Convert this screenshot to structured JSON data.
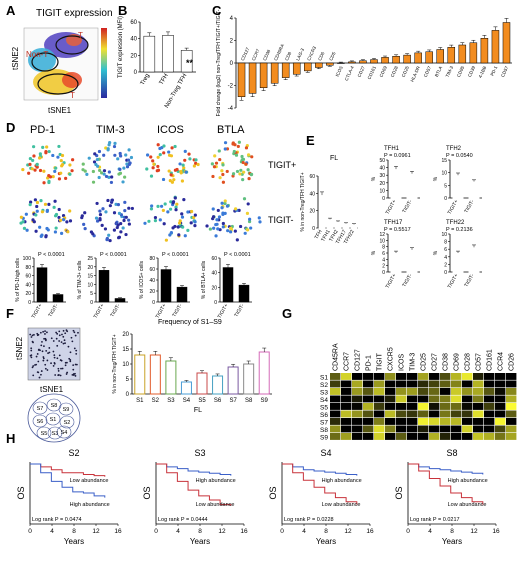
{
  "panel_letters": [
    "A",
    "B",
    "C",
    "D",
    "E",
    "F",
    "G",
    "H"
  ],
  "A": {
    "title": "TIGIT expression",
    "xlabel": "tSNE1",
    "ylabel": "tSNE2",
    "regions": [
      "T",
      "Non-T",
      "T"
    ]
  },
  "chart_data": [
    {
      "id": "B",
      "type": "bar",
      "categories": [
        "Treg",
        "TFH",
        "Non-Treg TFH"
      ],
      "values": [
        43,
        44,
        26
      ],
      "ylabel": "TIGIT expression (MFI)",
      "ylim": [
        0,
        60
      ],
      "ticks": [
        0,
        20,
        40,
        60
      ],
      "annotation": "**"
    },
    {
      "id": "C",
      "type": "bar",
      "ylabel": "Fold change (log2) non-Treg/TFH TIGIT+/TIGIT-",
      "ylim": [
        -4,
        4
      ],
      "ticks": [
        -4,
        -2,
        0,
        2,
        4
      ],
      "categories": [
        "CD127",
        "CCR7",
        "CD38",
        "CD45RA",
        "CD8",
        "LAG-3",
        "CXCR3",
        "CD6",
        "CD5",
        "ICOS",
        "CTLA-4",
        "CD27",
        "CD161",
        "CD69",
        "CD28",
        "CD25",
        "HLA-DR",
        "CD57",
        "BTLA",
        "TIM-3",
        "CD95",
        "CD39",
        "4-1BB",
        "PD-1",
        "CD57"
      ],
      "values": [
        -3.0,
        -2.7,
        -2.2,
        -1.8,
        -1.3,
        -1.0,
        -0.7,
        -0.4,
        -0.2,
        0.0,
        0.1,
        0.2,
        0.3,
        0.5,
        0.6,
        0.7,
        0.9,
        1.0,
        1.2,
        1.4,
        1.6,
        1.8,
        2.2,
        2.9,
        3.6
      ]
    },
    {
      "id": "D-PD1",
      "type": "bar",
      "categories": [
        "TIGIT+",
        "TIGIT-"
      ],
      "values": [
        78,
        17
      ],
      "ylabel": "% of PD-1high cells",
      "ylim": [
        0,
        100
      ],
      "ticks": [
        0,
        20,
        40,
        60,
        80,
        100
      ],
      "annotation": "P < 0.0001"
    },
    {
      "id": "D-TIM3",
      "type": "bar",
      "categories": [
        "TIGIT+",
        "TIGIT-"
      ],
      "values": [
        18,
        2
      ],
      "ylabel": "% of TIM-3+ cells",
      "ylim": [
        0,
        25
      ],
      "ticks": [
        0,
        5,
        10,
        15,
        20,
        25
      ],
      "annotation": "P < 0.0001"
    },
    {
      "id": "D-ICOS",
      "type": "bar",
      "categories": [
        "TIGIT+",
        "TIGIT-"
      ],
      "values": [
        59,
        27
      ],
      "ylabel": "% of ICOS+ cells",
      "ylim": [
        0,
        80
      ],
      "ticks": [
        0,
        20,
        40,
        60,
        80
      ],
      "annotation": "P < 0.0001"
    },
    {
      "id": "D-BTLA",
      "type": "bar",
      "categories": [
        "TIGIT+",
        "TIGIT-"
      ],
      "values": [
        47,
        23
      ],
      "ylabel": "% of BTLA+ cells",
      "ylim": [
        0,
        60
      ],
      "ticks": [
        0,
        20,
        40,
        60
      ],
      "annotation": "P < 0.0001"
    },
    {
      "id": "E-FL",
      "type": "bar",
      "title": "FL",
      "categories": [
        "TFH",
        "TFH1",
        "TFH2",
        "TFH17",
        "TFH22"
      ],
      "values": [
        38,
        10,
        7,
        5,
        4
      ],
      "ylabel": "% in non-Treg/TFH TIGIT+",
      "ylim": [
        0,
        60
      ],
      "ticks": [
        0,
        20,
        40,
        60
      ]
    },
    {
      "id": "E-TFH1",
      "type": "bar",
      "title": "TFH1",
      "annotation": "P = 0.0961",
      "categories": [
        "TIGIT+",
        "TIGIT-"
      ],
      "values": [
        38,
        32
      ],
      "ylabel": "%",
      "ylim": [
        0,
        50
      ],
      "ticks": [
        0,
        10,
        20,
        30,
        40,
        50
      ]
    },
    {
      "id": "E-TFH2",
      "type": "bar",
      "title": "TFH2",
      "annotation": "P = 0.0540",
      "categories": [
        "TIGIT+",
        "TIGIT-"
      ],
      "values": [
        9,
        6.5
      ],
      "ylabel": "%",
      "ylim": [
        0,
        15
      ],
      "ticks": [
        0,
        5,
        10,
        15
      ]
    },
    {
      "id": "E-TFH17",
      "type": "bar",
      "title": "TFH17",
      "annotation": "P = 0.5517",
      "categories": [
        "TIGIT+",
        "TIGIT-"
      ],
      "values": [
        6,
        7
      ],
      "ylabel": "%",
      "ylim": [
        0,
        12
      ],
      "ticks": [
        0,
        2,
        4,
        6,
        8,
        10,
        12
      ]
    },
    {
      "id": "E-TFH22",
      "type": "bar",
      "title": "TFH22",
      "annotation": "P = 0.2136",
      "categories": [
        "TIGIT+",
        "TIGIT-"
      ],
      "values": [
        5,
        6.5
      ],
      "ylabel": "%",
      "ylim": [
        0,
        10
      ],
      "ticks": [
        0,
        2,
        4,
        6,
        8,
        10
      ]
    },
    {
      "id": "F",
      "type": "bar",
      "title": "Frequency of S1–S9",
      "xlabel": "FL",
      "ylabel": "% in non-Treg/TFH TIGIT+",
      "categories": [
        "S1",
        "S2",
        "S3",
        "S4",
        "S5",
        "S6",
        "S7",
        "S8",
        "S9"
      ],
      "values": [
        13,
        13,
        11,
        4,
        7,
        6,
        9,
        10,
        14
      ],
      "ylim": [
        0,
        20
      ],
      "ticks": [
        0,
        5,
        10,
        15,
        20
      ],
      "colors": [
        "#c9a227",
        "#e15b2a",
        "#6aa84f",
        "#4a9cd6",
        "#c94848",
        "#46a0c2",
        "#7a5aa0",
        "#8a8a8a",
        "#d46ab8"
      ]
    },
    {
      "id": "H-S2",
      "type": "line",
      "title": "S2",
      "xlabel": "Years",
      "ylabel": "OS",
      "xticks": [
        0,
        4,
        8,
        12,
        16
      ],
      "legend": [
        "Low abundance",
        "High abundance"
      ],
      "annotation": "Log rank P = 0.0474"
    },
    {
      "id": "H-S3",
      "type": "line",
      "title": "S3",
      "xlabel": "Years",
      "ylabel": "OS",
      "xticks": [
        0,
        4,
        8,
        12,
        16
      ],
      "legend": [
        "High abundance",
        "Low abundance"
      ],
      "annotation": "Log rank P = 0.0444"
    },
    {
      "id": "H-S4",
      "type": "line",
      "title": "S4",
      "xlabel": "Years",
      "ylabel": "OS",
      "xticks": [
        0,
        4,
        8,
        12,
        16
      ],
      "legend": [
        "High abundance",
        "Low abundance"
      ],
      "annotation": "Log rank P = 0.0228"
    },
    {
      "id": "H-S8",
      "type": "line",
      "title": "S8",
      "xlabel": "Years",
      "ylabel": "OS",
      "xticks": [
        0,
        4,
        8,
        12,
        16
      ],
      "legend": [
        "High abundance",
        "Low abundance"
      ],
      "annotation": "Log rank P = 0.0217"
    }
  ],
  "D": {
    "markers": [
      "PD-1",
      "TIM-3",
      "ICOS",
      "BTLA"
    ],
    "rows": [
      "TIGIT+",
      "TIGIT-"
    ]
  },
  "F_map": {
    "xlabel": "tSNE1",
    "ylabel": "tSNE2",
    "clusters": [
      "S7",
      "S8",
      "S9",
      "S6",
      "S1",
      "S2",
      "S5",
      "S3",
      "S4"
    ]
  },
  "G": {
    "columns": [
      "CD45RA",
      "CCR7",
      "CD127",
      "PD-1",
      "TIGIT",
      "CXCR5",
      "ICOS",
      "TIM-3",
      "CD25",
      "CD27",
      "CD38",
      "CD69",
      "CD28",
      "CD57",
      "CD161",
      "CCR4",
      "CD26"
    ],
    "rows": [
      "S1",
      "S2",
      "S3",
      "S4",
      "S5",
      "S6",
      "S7",
      "S8",
      "S9"
    ],
    "colors": {
      "low": "#000000",
      "high": "#ffff33"
    }
  },
  "colors": {
    "bar_orange": "#f28c1f",
    "black": "#000000",
    "low_abundance": "#3a5fc8",
    "high_abundance": "#c8323a"
  }
}
